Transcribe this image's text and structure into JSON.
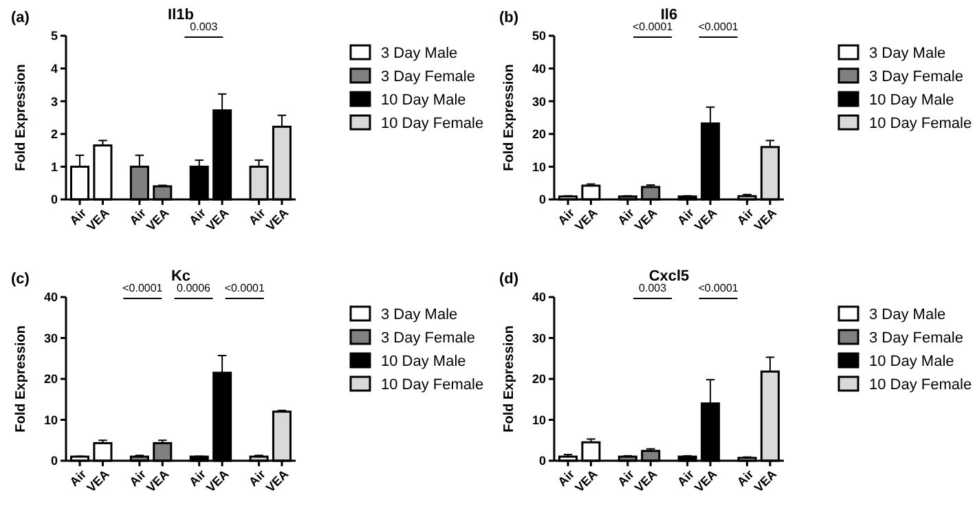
{
  "chart_data": [
    {
      "type": "bar",
      "subtitle": "(a)",
      "title": "Il1b",
      "ylabel": "Fold  Expression",
      "categories": [
        "Air",
        "VEA",
        "Air",
        "VEA",
        "Air",
        "VEA",
        "Air",
        "VEA"
      ],
      "ylim": [
        0,
        5
      ],
      "yticks": [
        0,
        1,
        2,
        3,
        4,
        5
      ],
      "legend": "right",
      "annotations": [
        "0.003"
      ],
      "series": [
        {
          "name": "3 Day Male",
          "color": "#ffffff",
          "values": [
            1.0,
            1.65,
            null,
            null,
            null,
            null,
            null,
            null
          ],
          "errors": [
            0.35,
            0.15,
            null,
            null,
            null,
            null,
            null,
            null
          ]
        },
        {
          "name": "3 Day Female",
          "color": "#808080",
          "values": [
            null,
            null,
            1.0,
            0.4,
            null,
            null,
            null,
            null
          ],
          "errors": [
            null,
            null,
            0.35,
            0.03,
            null,
            null,
            null,
            null
          ]
        },
        {
          "name": "10 Day Male",
          "color": "#000000",
          "values": [
            null,
            null,
            null,
            null,
            1.0,
            2.72,
            null,
            null
          ],
          "errors": [
            null,
            null,
            null,
            null,
            0.2,
            0.5,
            null,
            null
          ]
        },
        {
          "name": "10 Day Female",
          "color": "#d9d9d9",
          "values": [
            null,
            null,
            null,
            null,
            null,
            null,
            1.0,
            2.22
          ],
          "errors": [
            null,
            null,
            null,
            null,
            null,
            null,
            0.2,
            0.35
          ]
        }
      ]
    },
    {
      "type": "bar",
      "subtitle": "(b)",
      "title": "Il6",
      "ylabel": "Fold  Expression",
      "categories": [
        "Air",
        "VEA",
        "Air",
        "VEA",
        "Air",
        "VEA",
        "Air",
        "VEA"
      ],
      "ylim": [
        0,
        50
      ],
      "yticks": [
        0,
        10,
        20,
        30,
        40,
        50
      ],
      "legend": "right",
      "annotations": [
        "<0.0001",
        "<0.0001"
      ],
      "series": [
        {
          "name": "3 Day Male",
          "color": "#ffffff",
          "values": [
            0.9,
            4.2,
            null,
            null,
            null,
            null,
            null,
            null
          ],
          "errors": [
            0.2,
            0.5,
            null,
            null,
            null,
            null,
            null,
            null
          ]
        },
        {
          "name": "3 Day Female",
          "color": "#808080",
          "values": [
            null,
            null,
            0.9,
            3.8,
            null,
            null,
            null,
            null
          ],
          "errors": [
            null,
            null,
            0.2,
            0.6,
            null,
            null,
            null,
            null
          ]
        },
        {
          "name": "10 Day Male",
          "color": "#000000",
          "values": [
            null,
            null,
            null,
            null,
            0.9,
            23.2,
            null,
            null
          ],
          "errors": [
            null,
            null,
            null,
            null,
            0.2,
            5,
            null,
            null
          ]
        },
        {
          "name": "10 Day Female",
          "color": "#d9d9d9",
          "values": [
            null,
            null,
            null,
            null,
            null,
            null,
            1.0,
            16
          ],
          "errors": [
            null,
            null,
            null,
            null,
            null,
            null,
            0.5,
            2
          ]
        }
      ]
    },
    {
      "type": "bar",
      "subtitle": "(c)",
      "title": "Kc",
      "ylabel": "Fold  Expression",
      "categories": [
        "Air",
        "VEA",
        "Air",
        "VEA",
        "Air",
        "VEA",
        "Air",
        "VEA"
      ],
      "ylim": [
        0,
        40
      ],
      "yticks": [
        0,
        10,
        20,
        30,
        40
      ],
      "legend": "right",
      "annotations": [
        "<0.0001",
        "0.0006",
        "<0.0001"
      ],
      "series": [
        {
          "name": "3 Day Male",
          "color": "#ffffff",
          "values": [
            1.0,
            4.3,
            null,
            null,
            null,
            null,
            null,
            null
          ],
          "errors": [
            0.1,
            0.7,
            null,
            null,
            null,
            null,
            null,
            null
          ]
        },
        {
          "name": "3 Day Female",
          "color": "#808080",
          "values": [
            null,
            null,
            1.0,
            4.3,
            null,
            null,
            null,
            null
          ],
          "errors": [
            null,
            null,
            0.3,
            0.7,
            null,
            null,
            null,
            null
          ]
        },
        {
          "name": "10 Day Male",
          "color": "#000000",
          "values": [
            null,
            null,
            null,
            null,
            1.0,
            21.5,
            null,
            null
          ],
          "errors": [
            null,
            null,
            null,
            null,
            0.1,
            4.2,
            null,
            null
          ]
        },
        {
          "name": "10 Day Female",
          "color": "#d9d9d9",
          "values": [
            null,
            null,
            null,
            null,
            null,
            null,
            1.0,
            12
          ],
          "errors": [
            null,
            null,
            null,
            null,
            null,
            null,
            0.3,
            0.3
          ]
        }
      ]
    },
    {
      "type": "bar",
      "subtitle": "(d)",
      "title": "Cxcl5",
      "ylabel": "Fold  Expression",
      "categories": [
        "Air",
        "VEA",
        "Air",
        "VEA",
        "Air",
        "VEA",
        "Air",
        "VEA"
      ],
      "ylim": [
        0,
        40
      ],
      "yticks": [
        0,
        10,
        20,
        30,
        40
      ],
      "legend": "right",
      "annotations": [
        "0.003",
        "<0.0001"
      ],
      "series": [
        {
          "name": "3 Day Male",
          "color": "#ffffff",
          "values": [
            1.0,
            4.5,
            null,
            null,
            null,
            null,
            null,
            null
          ],
          "errors": [
            0.5,
            0.8,
            null,
            null,
            null,
            null,
            null,
            null
          ]
        },
        {
          "name": "3 Day Female",
          "color": "#808080",
          "values": [
            null,
            null,
            1.0,
            2.4,
            null,
            null,
            null,
            null
          ],
          "errors": [
            null,
            null,
            0.2,
            0.5,
            null,
            null,
            null,
            null
          ]
        },
        {
          "name": "10 Day Male",
          "color": "#000000",
          "values": [
            null,
            null,
            null,
            null,
            1.0,
            14,
            null,
            null
          ],
          "errors": [
            null,
            null,
            null,
            null,
            0.2,
            5.8,
            null,
            null
          ]
        },
        {
          "name": "10 Day Female",
          "color": "#d9d9d9",
          "values": [
            null,
            null,
            null,
            null,
            null,
            null,
            0.7,
            21.8
          ],
          "errors": [
            null,
            null,
            null,
            null,
            null,
            null,
            0.2,
            3.5
          ]
        }
      ]
    }
  ]
}
